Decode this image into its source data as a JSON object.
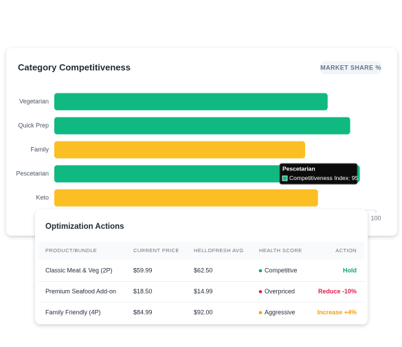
{
  "chart_data": {
    "type": "hbar",
    "title": "Category Competitiveness",
    "badge": "MARKET SHARE %",
    "categories": [
      "Vegetarian",
      "Quick Prep",
      "Family",
      "Pescetarian",
      "Keto"
    ],
    "series": [
      {
        "name": "Competitiveness Index",
        "values": [
          85,
          92,
          78,
          95,
          82
        ],
        "colors": [
          "#10b981",
          "#10b981",
          "#fbbf24",
          "#10b981",
          "#fbbf24"
        ]
      }
    ],
    "xlim": [
      0,
      100
    ],
    "xticks": [
      100
    ],
    "tooltip_index": 3
  },
  "table": {
    "title": "Optimization Actions",
    "columns": [
      "PRODUCT/BUNDLE",
      "CURRENT PRICE",
      "HELLOFRESH AVG",
      "HEALTH SCORE",
      "ACTION"
    ],
    "rows": [
      {
        "product": "Classic Meat & Veg (2P)",
        "price": "$59.99",
        "avg": "$62.50",
        "health": "Competitive",
        "action": "Hold",
        "color": "#10a36f"
      },
      {
        "product": "Premium Seafood Add-on",
        "price": "$18.50",
        "avg": "$14.99",
        "health": "Overpriced",
        "action": "Reduce -10%",
        "color": "#e11d48"
      },
      {
        "product": "Family Friendly (4P)",
        "price": "$84.99",
        "avg": "$92.00",
        "health": "Aggressive",
        "action": "Increase +4%",
        "color": "#f59e0b"
      }
    ]
  }
}
